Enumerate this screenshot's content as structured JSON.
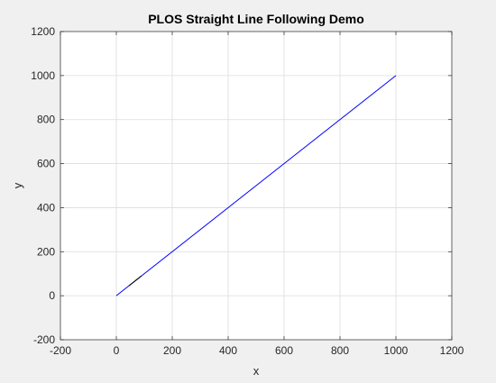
{
  "chart_data": {
    "type": "line",
    "title": "PLOS Straight Line Following Demo",
    "xlabel": "x",
    "ylabel": "y",
    "xlim": [
      -200,
      1200
    ],
    "ylim": [
      -200,
      1200
    ],
    "xticks": [
      -200,
      0,
      200,
      400,
      600,
      800,
      1000,
      1200
    ],
    "yticks": [
      -200,
      0,
      200,
      400,
      600,
      800,
      1000,
      1200
    ],
    "grid": true,
    "series": [
      {
        "color": "#0000ff",
        "x": [
          0,
          1000
        ],
        "y": [
          0,
          1000
        ]
      }
    ],
    "vehicle": {
      "color": "#000000",
      "fill": "#ffffff",
      "x": [
        45,
        75,
        90,
        60,
        45
      ],
      "y": [
        45,
        75,
        90,
        60,
        45
      ]
    }
  }
}
